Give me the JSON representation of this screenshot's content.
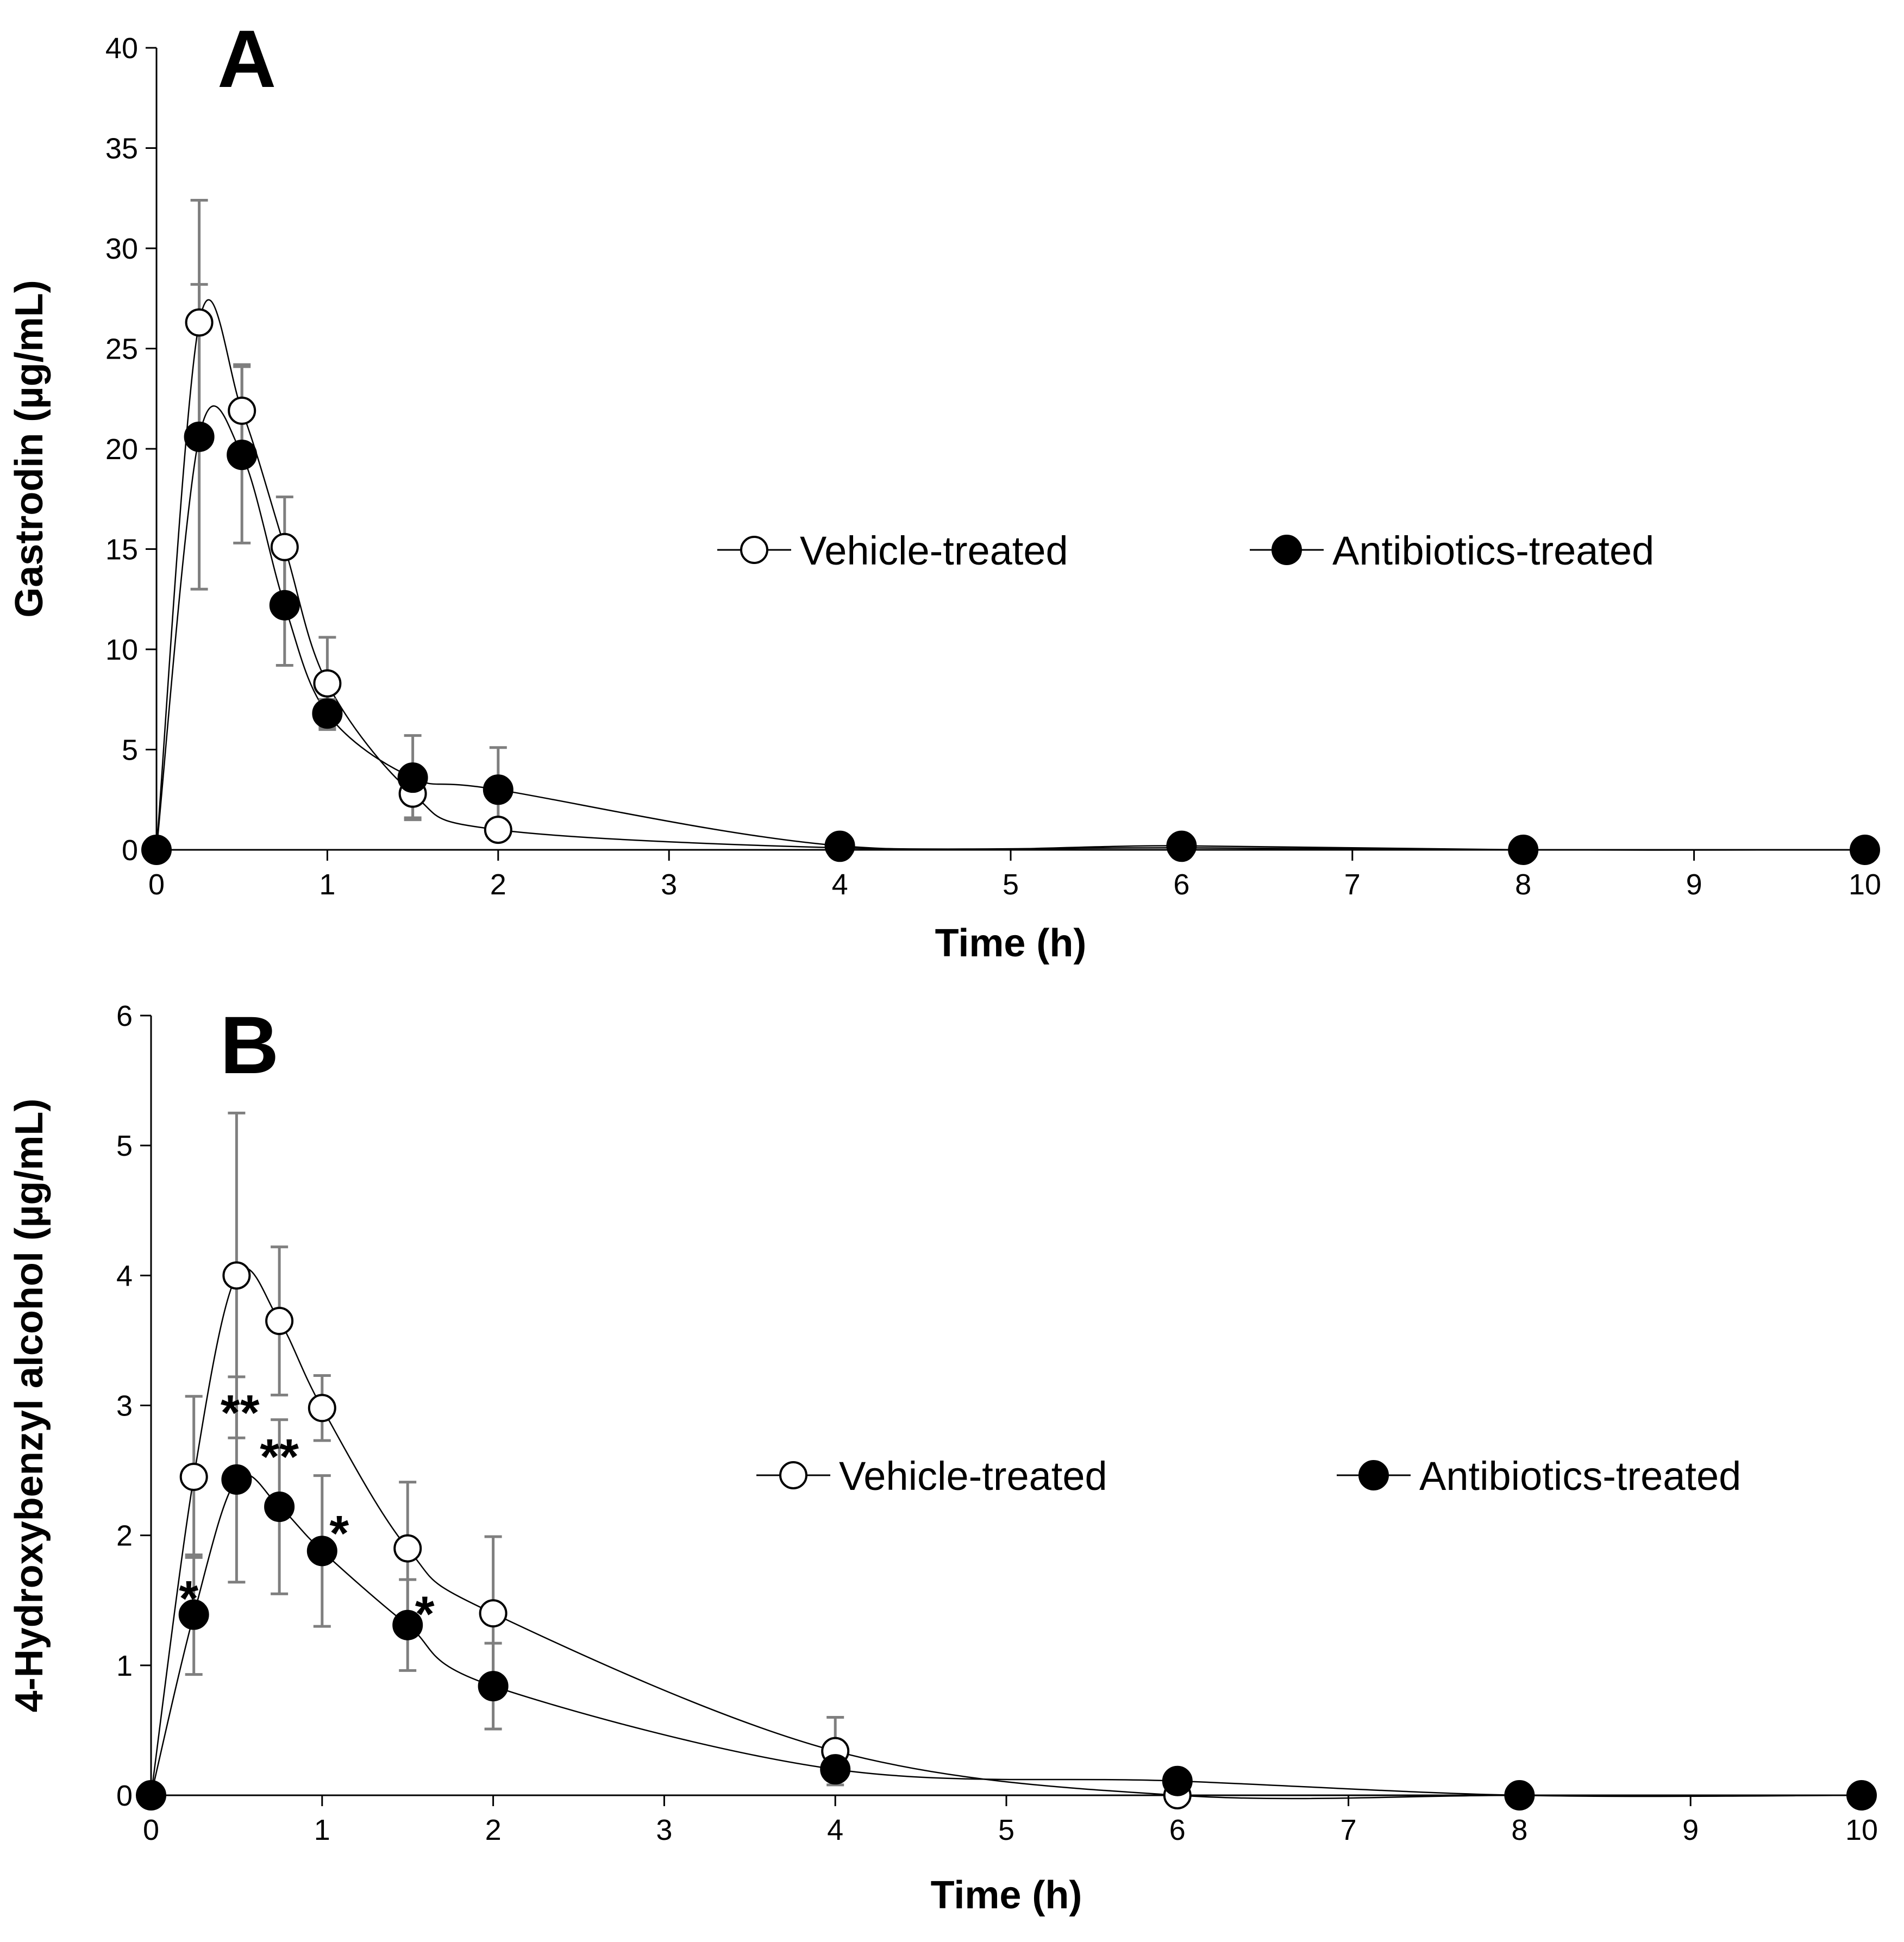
{
  "chart_data": [
    {
      "type": "line",
      "panel_label": "A",
      "title": "",
      "xlabel": "Time (h)",
      "ylabel": "Gastrodin (µg/mL)",
      "xlim": [
        0,
        10
      ],
      "ylim": [
        0,
        40
      ],
      "xticks": [
        0,
        1,
        2,
        3,
        4,
        5,
        6,
        7,
        8,
        9,
        10
      ],
      "yticks": [
        0,
        5,
        10,
        15,
        20,
        25,
        30,
        35,
        40
      ],
      "grid": false,
      "legend": "center-right",
      "series": [
        {
          "name": "Vehicle-treated",
          "marker": "open-circle",
          "x": [
            0,
            0.25,
            0.5,
            0.75,
            1,
            1.5,
            2,
            4,
            6,
            8,
            10
          ],
          "y": [
            0,
            26.3,
            21.9,
            15.1,
            8.3,
            2.8,
            1.0,
            0.1,
            0.1,
            0,
            0
          ],
          "error": [
            0,
            6.1,
            2.3,
            2.5,
            2.3,
            1.2,
            0,
            0,
            0,
            0,
            0
          ]
        },
        {
          "name": "Antibiotics-treated",
          "marker": "filled-circle",
          "x": [
            0,
            0.25,
            0.5,
            0.75,
            1,
            1.5,
            2,
            4,
            6,
            8,
            10
          ],
          "y": [
            0,
            20.6,
            19.7,
            12.2,
            6.8,
            3.6,
            3.0,
            0.2,
            0.2,
            0,
            0
          ],
          "error": [
            0,
            7.6,
            4.4,
            3.0,
            0.7,
            2.1,
            2.1,
            0,
            0,
            0,
            0
          ]
        }
      ],
      "annotations": []
    },
    {
      "type": "line",
      "panel_label": "B",
      "title": "",
      "xlabel": "Time (h)",
      "ylabel": "4-Hydroxybenzyl alcohol (µg/mL)",
      "xlim": [
        0,
        10
      ],
      "ylim": [
        0,
        6
      ],
      "xticks": [
        0,
        1,
        2,
        3,
        4,
        5,
        6,
        7,
        8,
        9,
        10
      ],
      "yticks": [
        0,
        1,
        2,
        3,
        4,
        5,
        6
      ],
      "grid": false,
      "legend": "center-right",
      "series": [
        {
          "name": "Vehicle-treated",
          "marker": "open-circle",
          "x": [
            0,
            0.25,
            0.5,
            0.75,
            1,
            1.5,
            2,
            4,
            6,
            8,
            10
          ],
          "y": [
            0,
            2.45,
            4.0,
            3.65,
            2.98,
            1.9,
            1.4,
            0.34,
            0.0,
            0,
            0
          ],
          "error": [
            0,
            0.62,
            1.25,
            0.57,
            0.25,
            0.51,
            0.59,
            0.26,
            0,
            0,
            0
          ]
        },
        {
          "name": "Antibiotics-treated",
          "marker": "filled-circle",
          "x": [
            0,
            0.25,
            0.5,
            0.75,
            1,
            1.5,
            2,
            4,
            6,
            8,
            10
          ],
          "y": [
            0,
            1.39,
            2.43,
            2.22,
            1.88,
            1.31,
            0.84,
            0.2,
            0.11,
            0,
            0
          ],
          "error": [
            0,
            0.46,
            0.79,
            0.67,
            0.58,
            0.35,
            0.33,
            0,
            0,
            0,
            0
          ]
        }
      ],
      "annotations": [
        {
          "text": "*",
          "x": 0.22,
          "y": 1.55
        },
        {
          "text": "**",
          "x": 0.52,
          "y": 2.98
        },
        {
          "text": "**",
          "x": 0.75,
          "y": 2.64
        },
        {
          "text": "*",
          "x": 1.1,
          "y": 2.05
        },
        {
          "text": "*",
          "x": 1.6,
          "y": 1.43
        }
      ]
    }
  ]
}
